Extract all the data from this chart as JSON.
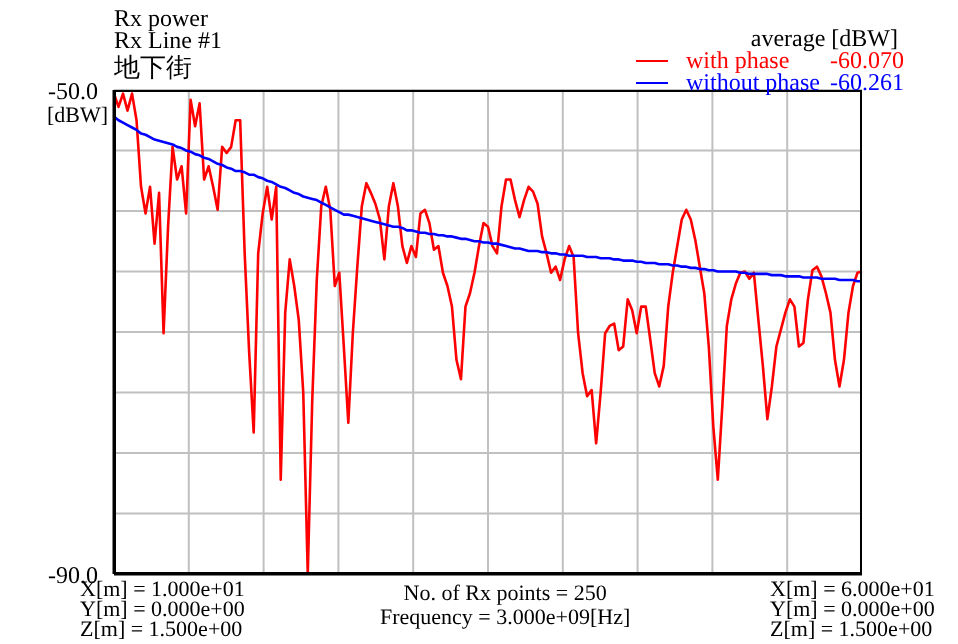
{
  "chart_data": {
    "type": "line",
    "title": "Rx power",
    "subtitle": "Rx Line #1",
    "ylabel": "[dBW]",
    "legend_title": "average [dBW]",
    "annotations": [
      "地下街",
      "-60.070",
      "-60.261",
      "X[m] = 1.000e+01",
      "Y[m] = 0.000e+00",
      "Z[m] = 1.500e+00",
      "No. of Rx points = 250",
      "Frequency = 3.000e+09[Hz]",
      "X[m] = 6.000e+01",
      "Y[m] = 0.000e+00",
      "Z[m] = 1.500e+00"
    ],
    "categories": [
      null,
      null,
      null,
      null,
      null,
      null,
      null,
      null,
      null,
      null,
      null,
      null,
      null,
      null,
      null,
      null,
      null,
      null,
      null,
      null,
      null,
      null,
      null,
      null,
      null,
      null,
      null,
      null,
      null,
      null,
      null,
      null,
      null,
      null,
      null,
      null,
      null,
      null,
      null,
      null,
      null,
      null,
      null,
      null,
      null,
      null,
      null,
      null,
      null,
      null,
      null,
      null,
      null,
      null,
      null,
      null,
      null,
      null,
      null,
      null,
      null,
      null,
      null,
      null,
      null,
      null,
      null,
      null,
      null,
      null,
      null,
      null,
      null,
      null,
      null,
      null,
      null,
      null,
      null,
      null,
      null,
      null,
      null,
      null,
      null,
      null,
      null,
      null,
      null,
      null,
      null,
      null,
      null,
      null,
      null,
      null,
      null,
      null,
      null,
      null,
      null,
      null,
      null,
      null,
      null,
      null,
      null,
      null,
      null,
      null,
      null,
      null,
      null,
      null,
      null,
      null,
      null,
      null,
      null,
      null,
      null,
      null,
      null,
      null,
      null,
      null,
      null,
      null,
      null,
      null,
      null,
      null,
      null,
      null,
      null,
      null,
      null,
      null,
      null,
      null,
      null,
      null,
      null,
      null,
      null,
      null,
      null,
      null,
      null,
      null,
      null,
      null,
      null,
      null,
      null,
      null,
      null,
      null,
      null,
      null,
      null,
      null,
      null,
      null,
      null,
      null,
      null
    ],
    "ylim": [
      -90,
      -50
    ],
    "yticks": [
      {
        "value": -50,
        "label": "-50.0"
      },
      {
        "value": -55,
        "label": null
      },
      {
        "value": -60,
        "label": null
      },
      {
        "value": -65,
        "label": null
      },
      {
        "value": -70,
        "label": null
      },
      {
        "value": -75,
        "label": null
      },
      {
        "value": -80,
        "label": null
      },
      {
        "value": -85,
        "label": null
      },
      {
        "value": -90,
        "label": "-90.0"
      }
    ],
    "tick_labels": "y",
    "grid": true,
    "legend": "top right",
    "marker": "none",
    "line_style": "solid",
    "series": [
      {
        "name": "with phase",
        "color": "#ff0000",
        "values": [
          -50.3,
          -51.4,
          -50.3,
          -51.7,
          -50.3,
          -52.5,
          -58.0,
          -60.2,
          -58.0,
          -62.7,
          -58.5,
          -70.1,
          -61.3,
          -54.7,
          -57.4,
          -56.3,
          -60.2,
          -50.8,
          -53.0,
          -51.1,
          -57.4,
          -56.3,
          -58.0,
          -59.9,
          -54.7,
          -55.2,
          -54.7,
          -52.5,
          -52.5,
          -63.5,
          -71.7,
          -78.3,
          -63.5,
          -60.2,
          -58.0,
          -60.7,
          -58.0,
          -82.2,
          -68.4,
          -64.0,
          -66.2,
          -69.0,
          -75.0,
          -90.0,
          -75.6,
          -65.7,
          -59.6,
          -58.0,
          -59.9,
          -66.2,
          -65.1,
          -71.2,
          -77.5,
          -70.1,
          -64.6,
          -59.6,
          -57.7,
          -58.5,
          -59.4,
          -60.7,
          -64.0,
          -59.6,
          -57.7,
          -59.6,
          -62.9,
          -64.3,
          -62.9,
          -63.8,
          -60.2,
          -59.9,
          -61.0,
          -63.2,
          -62.9,
          -65.1,
          -66.2,
          -67.9,
          -72.3,
          -73.9,
          -67.9,
          -66.8,
          -65.1,
          -62.9,
          -61.0,
          -61.3,
          -62.9,
          -63.5,
          -59.6,
          -57.4,
          -57.4,
          -59.1,
          -60.5,
          -59.1,
          -58.0,
          -58.4,
          -59.4,
          -62.1,
          -63.5,
          -65.1,
          -64.6,
          -65.7,
          -64.0,
          -62.9,
          -63.8,
          -70.1,
          -73.4,
          -75.3,
          -74.8,
          -79.2,
          -75.0,
          -70.1,
          -69.5,
          -69.3,
          -71.5,
          -71.2,
          -67.3,
          -68.2,
          -70.1,
          -67.9,
          -67.9,
          -70.6,
          -73.4,
          -74.5,
          -72.8,
          -67.9,
          -65.1,
          -62.9,
          -60.7,
          -59.9,
          -60.7,
          -62.4,
          -64.6,
          -66.8,
          -71.2,
          -77.8,
          -82.2,
          -76.1,
          -69.5,
          -67.3,
          -66.0,
          -65.1,
          -65.0,
          -65.6,
          -65.1,
          -69.0,
          -72.8,
          -77.2,
          -74.5,
          -71.2,
          -69.8,
          -68.4,
          -67.3,
          -67.9,
          -71.2,
          -70.9,
          -67.3,
          -64.9,
          -64.6,
          -65.4,
          -66.8,
          -68.4,
          -72.3,
          -74.5,
          -72.3,
          -68.4,
          -66.2,
          -65.1,
          -65.0
        ]
      },
      {
        "name": "without phase",
        "color": "#0000ff",
        "values": [
          -52.2,
          -52.5,
          -52.7,
          -52.9,
          -53.1,
          -53.3,
          -53.6,
          -53.7,
          -53.9,
          -54.1,
          -54.2,
          -54.3,
          -54.4,
          -54.5,
          -54.7,
          -54.8,
          -55.0,
          -55.1,
          -55.3,
          -55.4,
          -55.6,
          -55.7,
          -55.9,
          -56.1,
          -56.2,
          -56.4,
          -56.5,
          -56.7,
          -56.7,
          -56.8,
          -57.0,
          -57.0,
          -57.2,
          -57.3,
          -57.5,
          -57.6,
          -57.8,
          -58.0,
          -58.1,
          -58.3,
          -58.5,
          -58.6,
          -58.8,
          -58.9,
          -59.0,
          -59.1,
          -59.3,
          -59.5,
          -59.7,
          -59.9,
          -60.1,
          -60.3,
          -60.3,
          -60.4,
          -60.5,
          -60.6,
          -60.7,
          -60.8,
          -60.9,
          -61.0,
          -61.1,
          -61.2,
          -61.3,
          -61.3,
          -61.4,
          -61.6,
          -61.6,
          -61.7,
          -61.8,
          -61.8,
          -61.9,
          -61.9,
          -62.0,
          -62.0,
          -62.1,
          -62.1,
          -62.2,
          -62.3,
          -62.3,
          -62.4,
          -62.5,
          -62.5,
          -62.6,
          -62.6,
          -62.7,
          -62.7,
          -62.8,
          -62.9,
          -63.0,
          -63.1,
          -63.1,
          -63.2,
          -63.3,
          -63.3,
          -63.3,
          -63.4,
          -63.4,
          -63.5,
          -63.5,
          -63.6,
          -63.6,
          -63.7,
          -63.7,
          -63.7,
          -63.7,
          -63.8,
          -63.8,
          -63.8,
          -63.9,
          -63.9,
          -63.9,
          -64.0,
          -64.0,
          -64.1,
          -64.1,
          -64.1,
          -64.2,
          -64.2,
          -64.3,
          -64.3,
          -64.3,
          -64.4,
          -64.4,
          -64.4,
          -64.5,
          -64.5,
          -64.6,
          -64.6,
          -64.7,
          -64.7,
          -64.8,
          -64.8,
          -64.9,
          -64.9,
          -65.0,
          -65.0,
          -65.0,
          -65.0,
          -65.0,
          -65.1,
          -65.1,
          -65.2,
          -65.2,
          -65.2,
          -65.2,
          -65.2,
          -65.3,
          -65.3,
          -65.3,
          -65.4,
          -65.4,
          -65.4,
          -65.4,
          -65.5,
          -65.5,
          -65.5,
          -65.5,
          -65.6,
          -65.6,
          -65.6,
          -65.6,
          -65.7,
          -65.7,
          -65.7,
          -65.7,
          -65.8,
          -65.8
        ]
      }
    ]
  }
}
